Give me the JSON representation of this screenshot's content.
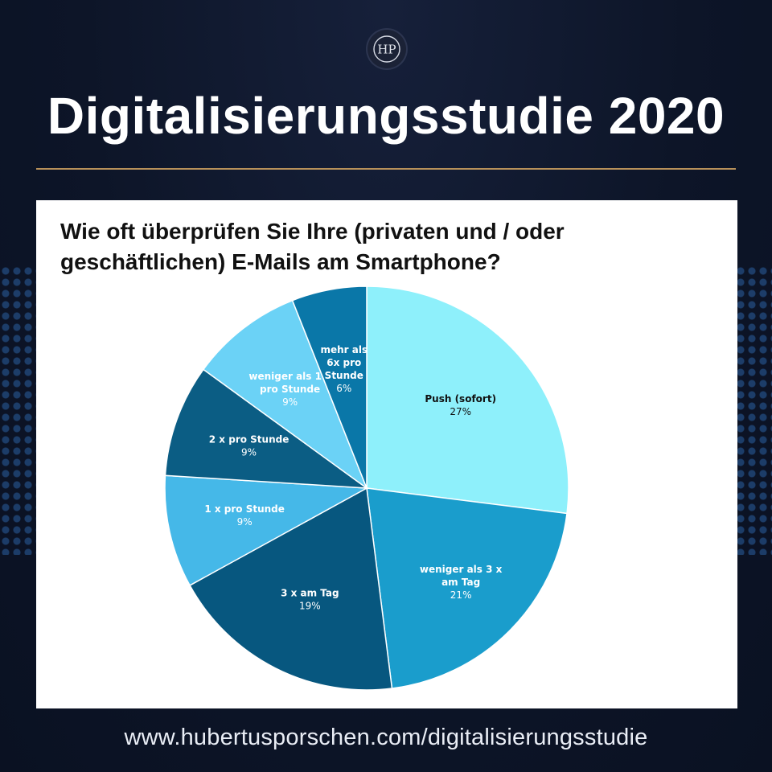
{
  "header": {
    "logo_text": "HP",
    "title": "Digitalisierungsstudie 2020"
  },
  "chart_data": {
    "type": "pie",
    "title": "Wie oft überprüfen Sie Ihre (privaten und / oder geschäftlichen) E-Mails am Smartphone?",
    "slices": [
      {
        "label": "Push (sofort)",
        "percent_label": "27%",
        "value": 27,
        "color": "#8ef0fb"
      },
      {
        "label": "weniger als 3 x am Tag",
        "percent_label": "21%",
        "value": 21,
        "color": "#1a9dcc"
      },
      {
        "label": "3 x am Tag",
        "percent_label": "19%",
        "value": 19,
        "color": "#07577f"
      },
      {
        "label": "1 x pro Stunde",
        "percent_label": "9%",
        "value": 9,
        "color": "#45b8e8"
      },
      {
        "label": "2 x pro Stunde",
        "percent_label": "9%",
        "value": 9,
        "color": "#0b5d84"
      },
      {
        "label": "weniger als 1 x pro Stunde",
        "percent_label": "9%",
        "value": 9,
        "color": "#6bd2f6"
      },
      {
        "label": "mehr als 6x pro Stunde",
        "percent_label": "6%",
        "value": 6,
        "color": "#0a77a8"
      }
    ]
  },
  "footer": {
    "url": "www.hubertusporschen.com/digitalisierungsstudie"
  }
}
